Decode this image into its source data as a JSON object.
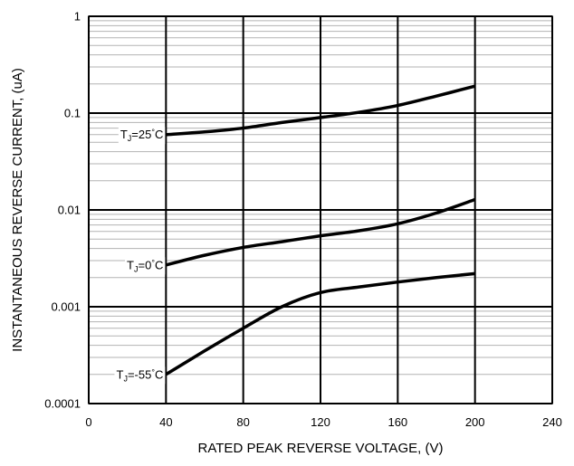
{
  "chart_data": {
    "type": "line",
    "title": "",
    "xlabel": "RATED PEAK REVERSE VOLTAGE, (V)",
    "ylabel": "INSTANTANEOUS REVERSE CURRENT, (uA)",
    "x_scale": "linear",
    "y_scale": "log",
    "xlim": [
      0,
      240
    ],
    "ylim": [
      0.0001,
      1
    ],
    "x_ticks": [
      0,
      40,
      80,
      120,
      160,
      200,
      240
    ],
    "x_tick_labels": [
      "0",
      "40",
      "80",
      "120",
      "160",
      "200",
      "240"
    ],
    "y_ticks": [
      0.0001,
      0.001,
      0.01,
      0.1,
      1
    ],
    "y_tick_labels": [
      "0.0001",
      "0.001",
      "0.01",
      "0.1",
      "1"
    ],
    "grid": true,
    "colors": {
      "curve": "#000000",
      "major_grid": "#000000",
      "minor_grid": "#b3b3b3"
    },
    "series": [
      {
        "label_parts": [
          "T",
          "J",
          "=25",
          "°",
          "C"
        ],
        "x": [
          40,
          60,
          80,
          100,
          120,
          140,
          160,
          180,
          200
        ],
        "y": [
          0.06,
          0.064,
          0.07,
          0.08,
          0.09,
          0.102,
          0.12,
          0.15,
          0.19
        ]
      },
      {
        "label_parts": [
          "T",
          "J",
          "=0",
          "°",
          "C"
        ],
        "x": [
          40,
          60,
          80,
          100,
          120,
          140,
          160,
          180,
          200
        ],
        "y": [
          0.0027,
          0.0034,
          0.0041,
          0.0047,
          0.0054,
          0.0061,
          0.0072,
          0.0093,
          0.0128
        ]
      },
      {
        "label_parts": [
          "T",
          "J",
          "=-55",
          "°",
          "C"
        ],
        "x": [
          40,
          60,
          80,
          100,
          120,
          140,
          160,
          180,
          200
        ],
        "y": [
          0.0002,
          0.00035,
          0.0006,
          0.001,
          0.0014,
          0.0016,
          0.0018,
          0.002,
          0.0022
        ]
      }
    ]
  }
}
